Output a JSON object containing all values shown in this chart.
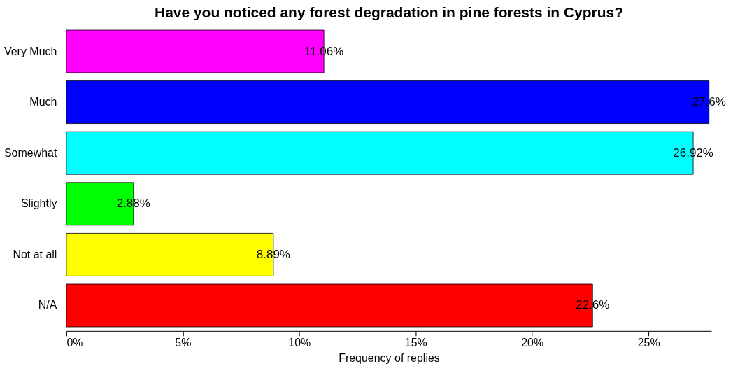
{
  "chart_data": {
    "type": "bar",
    "orientation": "horizontal",
    "title": "Have you noticed any forest degradation in pine forests in Cyprus?",
    "xlabel": "Frequency of replies",
    "categories": [
      "Very Much",
      "Much",
      "Somewhat",
      "Slightly",
      "Not at all",
      "N/A"
    ],
    "values": [
      11.06,
      27.6,
      26.92,
      2.88,
      8.89,
      22.6
    ],
    "colors": [
      "#ff00ff",
      "#0000ff",
      "#00ffff",
      "#00ff00",
      "#ffff00",
      "#ff0000"
    ],
    "value_labels": [
      "11.06%",
      "27.6%",
      "26.92%",
      "2.88%",
      "8.89%",
      "22.6%"
    ],
    "xlim": [
      0,
      27.7
    ],
    "xticks": [
      {
        "value": 0,
        "label": "0%"
      },
      {
        "value": 5,
        "label": "5%"
      },
      {
        "value": 10,
        "label": "10%"
      },
      {
        "value": 15,
        "label": "15%"
      },
      {
        "value": 20,
        "label": "20%"
      },
      {
        "value": 25,
        "label": "25%"
      }
    ],
    "grid": false
  }
}
